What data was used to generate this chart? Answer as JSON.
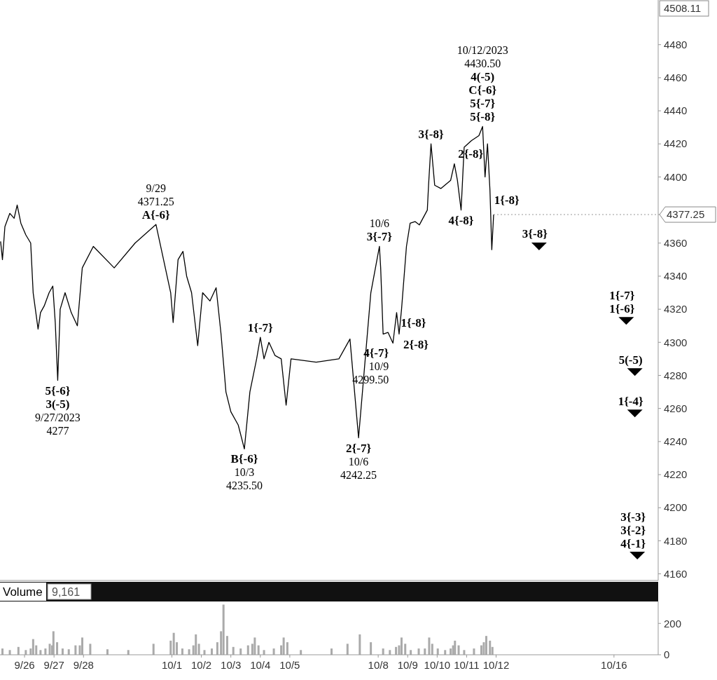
{
  "chart_data": [
    {
      "type": "line",
      "xlim": [
        "2023-09-25T04:00",
        "2023-10-17T12:00"
      ],
      "ylim": [
        4156,
        4507
      ],
      "yticks": [
        4160,
        4180,
        4200,
        4220,
        4240,
        4260,
        4280,
        4300,
        4320,
        4340,
        4360,
        4400,
        4420,
        4440,
        4460,
        4480
      ],
      "tick_labels": "y",
      "series": [
        {
          "color": "#000000",
          "x": [
            "2023-09-25T04:30",
            "2023-09-25T06:00",
            "2023-09-25T08:00",
            "2023-09-25T12:00",
            "2023-09-25T15:30",
            "2023-09-25T18:00",
            "2023-09-25T21:00",
            "2023-09-26T01:00",
            "2023-09-26T05:00",
            "2023-09-26T07:00",
            "2023-09-26T11:00",
            "2023-09-26T13:00",
            "2023-09-26T16:00",
            "2023-09-26T20:00",
            "2023-09-26T23:00",
            "2023-09-27T01:00",
            "2023-09-27T03:00",
            "2023-09-27T05:00",
            "2023-09-27T09:00",
            "2023-09-27T14:00",
            "2023-09-27T19:00",
            "2023-09-27T23:00",
            "2023-09-28T08:00",
            "2023-09-29T01:00",
            "2023-09-29T18:00",
            "2023-09-30T11:00",
            "2023-09-30T23:00",
            "2023-10-01T01:00",
            "2023-10-01T05:00",
            "2023-10-01T09:00",
            "2023-10-01T12:00",
            "2023-10-01T16:00",
            "2023-10-01T21:00",
            "2023-10-02T01:00",
            "2023-10-02T07:00",
            "2023-10-02T12:00",
            "2023-10-02T16:00",
            "2023-10-02T20:00",
            "2023-10-03T00:00",
            "2023-10-03T06:00",
            "2023-10-03T11:00",
            "2023-10-03T15:30",
            "2023-10-03T21:00",
            "2023-10-04T00:00",
            "2023-10-04T03:00",
            "2023-10-04T07:00",
            "2023-10-04T12:00",
            "2023-10-04T17:00",
            "2023-10-04T21:00",
            "2023-10-05T01:00",
            "2023-10-05T21:30",
            "2023-10-06T16:00",
            "2023-10-07T01:00",
            "2023-10-07T08:00",
            "2023-10-07T18:00",
            "2023-10-08T01:00",
            "2023-10-08T02:00",
            "2023-10-08T04:00",
            "2023-10-08T08:00",
            "2023-10-08T12:00",
            "2023-10-08T15:00",
            "2023-10-08T17:00",
            "2023-10-08T19:00",
            "2023-10-08T23:00",
            "2023-10-09T02:00",
            "2023-10-09T06:00",
            "2023-10-09T09:30",
            "2023-10-09T16:00",
            "2023-10-09T17:00",
            "2023-10-09T19:00",
            "2023-10-09T22:00",
            "2023-10-10T03:00",
            "2023-10-10T11:00",
            "2023-10-10T14:00",
            "2023-10-10T16:30",
            "2023-10-10T19:30",
            "2023-10-10T22:00",
            "2023-10-11T04:00",
            "2023-10-11T10:00",
            "2023-10-11T13:00",
            "2023-10-11T15:00",
            "2023-10-11T17:00",
            "2023-10-11T19:00",
            "2023-10-11T20:30",
            "2023-10-11T22:00"
          ],
          "values": [
            4361,
            4350,
            4370,
            4378,
            4375,
            4383,
            4372,
            4365,
            4360,
            4330,
            4308,
            4318,
            4322,
            4330,
            4334,
            4312,
            4277,
            4320,
            4330,
            4318,
            4310,
            4345,
            4358,
            4345,
            4360,
            4371.25,
            4330,
            4312,
            4350,
            4355,
            4340,
            4330,
            4298,
            4330,
            4325,
            4333,
            4305,
            4270,
            4258,
            4250,
            4235.5,
            4270,
            4290,
            4303,
            4290,
            4300,
            4292,
            4290,
            4262,
            4290,
            4288,
            4290,
            4302,
            4242.25,
            4330,
            4358,
            4345,
            4305,
            4306,
            4299.5,
            4318,
            4305,
            4320,
            4358,
            4372,
            4373,
            4371,
            4380,
            4395,
            4420,
            4395,
            4393,
            4398,
            4408,
            4398,
            4380,
            4418,
            4422,
            4425,
            4430.5,
            4400,
            4420,
            4392,
            4356,
            4377.25
          ]
        },
        {
          "type": "scatter",
          "marker": "triangle",
          "color": "#000000",
          "x": [
            "2023-10-13T11:00",
            "2023-10-16T10:00",
            "2023-10-16T17:00",
            "2023-10-16T17:00",
            "2023-10-16T19:00"
          ],
          "values": [
            4358,
            4313,
            4282,
            4257,
            4171
          ]
        }
      ],
      "annotations": [
        "4508.11",
        {
          "text": "4377.25",
          "x": "2023-10-11T22:00",
          "y": 4377.25
        },
        {
          "text": "5{-6}\n3(-5)\n9/27/2023\n4277",
          "x": "2023-09-27T03:00",
          "y": 4277
        },
        {
          "text": "9/29\n4371.25\nA{-6}",
          "x": "2023-09-30T11:00",
          "y": 4371.25
        },
        {
          "text": "B{-6}\n10/3\n4235.50",
          "x": "2023-10-03T11:00",
          "y": 4235.5
        },
        {
          "text": "1{-7}",
          "x": "2023-10-04T00:00",
          "y": 4303
        },
        {
          "text": "2{-7}\n10/6\n4242.25",
          "x": "2023-10-07T08:00",
          "y": 4242.25
        },
        {
          "text": "10/6\n3{-7}",
          "x": "2023-10-08T01:00",
          "y": 4358
        },
        {
          "text": "4{-7}\n10/9\n4299.50",
          "x": "2023-10-08T12:00",
          "y": 4299.5
        },
        {
          "text": "1{-8}",
          "x": "2023-10-08T15:00",
          "y": 4318
        },
        {
          "text": "2{-8}",
          "x": "2023-10-08T17:00",
          "y": 4305
        },
        {
          "text": "3{-8}",
          "x": "2023-10-09T19:00",
          "y": 4420
        },
        {
          "text": "4{-8}",
          "x": "2023-10-10T19:30",
          "y": 4380
        },
        {
          "text": "10/12/2023\n4430.50\n4(-5)\nC{-6}\n5{-7}\n5{-8}",
          "x": "2023-10-11T13:00",
          "y": 4430.5
        },
        {
          "text": "2{-8}",
          "x": "2023-10-11T17:00",
          "y": 4420
        },
        {
          "text": "1{-8}",
          "x": "2023-10-11T19:00",
          "y": 4392
        },
        {
          "text": "3{-8}",
          "x": "2023-10-13T11:00",
          "y": 4358
        },
        {
          "text": "1{-7}\n1{-6}",
          "x": "2023-10-16T10:00",
          "y": 4313
        },
        {
          "text": "5(-5)",
          "x": "2023-10-16T17:00",
          "y": 4282
        },
        {
          "text": "1{-4}",
          "x": "2023-10-16T17:00",
          "y": 4257
        },
        {
          "text": "3{-3}\n3{-2}\n4{-1}",
          "x": "2023-10-16T19:00",
          "y": 4171
        }
      ]
    },
    {
      "type": "bar",
      "title": "Volume",
      "color": "#aaaaaa",
      "xlim": [
        "2023-09-25T04:00",
        "2023-10-17T12:00"
      ],
      "ylim": [
        0,
        340
      ],
      "yticks": [
        0,
        200
      ],
      "xticks": [
        {
          "value": "2023-09-26",
          "label": "9/26"
        },
        {
          "value": "2023-09-27",
          "label": "9/27"
        },
        {
          "value": "2023-09-28",
          "label": "9/28"
        },
        {
          "value": "2023-10-01",
          "label": "10/1"
        },
        {
          "value": "2023-10-02",
          "label": "10/2"
        },
        {
          "value": "2023-10-03",
          "label": "10/3"
        },
        {
          "value": "2023-10-04",
          "label": "10/4"
        },
        {
          "value": "2023-10-05",
          "label": "10/5"
        },
        {
          "value": "2023-10-08",
          "label": "10/8"
        },
        {
          "value": "2023-10-09",
          "label": "10/9"
        },
        {
          "value": "2023-10-10",
          "label": "10/10"
        },
        {
          "value": "2023-10-11",
          "label": "10/11"
        },
        {
          "value": "2023-10-12",
          "label": "10/12"
        },
        {
          "value": "2023-10-16",
          "label": "10/16"
        }
      ],
      "x": [
        "2023-09-25T06:00",
        "2023-09-25T12:00",
        "2023-09-25T19:00",
        "2023-09-26T01:00",
        "2023-09-26T05:00",
        "2023-09-26T07:00",
        "2023-09-26T09:30",
        "2023-09-26T13:00",
        "2023-09-26T17:00",
        "2023-09-26T20:30",
        "2023-09-26T22:30",
        "2023-09-26T23:30",
        "2023-09-27T02:30",
        "2023-09-27T07:00",
        "2023-09-27T12:00",
        "2023-09-27T17:30",
        "2023-09-27T21:00",
        "2023-09-27T23:00",
        "2023-09-28T05:30",
        "2023-09-28T19:30",
        "2023-09-29T12:30",
        "2023-09-30T09:00",
        "2023-09-30T23:00",
        "2023-10-01T01:30",
        "2023-10-01T04:00",
        "2023-10-01T08:30",
        "2023-10-01T14:00",
        "2023-10-01T17:30",
        "2023-10-01T19:30",
        "2023-10-01T22:00",
        "2023-10-02T02:30",
        "2023-10-02T08:30",
        "2023-10-02T13:00",
        "2023-10-02T16:00",
        "2023-10-02T18:00",
        "2023-10-02T21:00",
        "2023-10-03T02:00",
        "2023-10-03T08:00",
        "2023-10-03T14:00",
        "2023-10-03T17:30",
        "2023-10-03T19:30",
        "2023-10-03T22:30",
        "2023-10-04T03:00",
        "2023-10-04T11:00",
        "2023-10-04T17:00",
        "2023-10-04T19:00",
        "2023-10-04T22:00",
        "2023-10-05T09:00",
        "2023-10-06T10:00",
        "2023-10-06T23:00",
        "2023-10-07T09:00",
        "2023-10-07T18:00",
        "2023-10-08T04:00",
        "2023-10-08T09:30",
        "2023-10-08T14:30",
        "2023-10-08T17:00",
        "2023-10-08T19:00",
        "2023-10-08T22:00",
        "2023-10-09T02:30",
        "2023-10-09T09:00",
        "2023-10-09T14:00",
        "2023-10-09T17:30",
        "2023-10-09T20:00",
        "2023-10-10T00:30",
        "2023-10-10T06:30",
        "2023-10-10T11:00",
        "2023-10-10T13:00",
        "2023-10-10T14:30",
        "2023-10-10T17:30",
        "2023-10-10T22:00",
        "2023-10-11T06:00",
        "2023-10-11T12:00",
        "2023-10-11T14:00",
        "2023-10-11T16:00",
        "2023-10-11T19:00",
        "2023-10-11T21:00"
      ],
      "values": [
        40,
        30,
        50,
        30,
        40,
        100,
        60,
        30,
        40,
        70,
        60,
        150,
        80,
        40,
        35,
        60,
        60,
        110,
        70,
        35,
        30,
        70,
        90,
        140,
        80,
        40,
        35,
        60,
        130,
        70,
        30,
        40,
        80,
        150,
        320,
        120,
        50,
        40,
        60,
        70,
        110,
        60,
        30,
        40,
        60,
        110,
        80,
        30,
        40,
        70,
        130,
        80,
        40,
        30,
        50,
        60,
        110,
        70,
        30,
        40,
        40,
        110,
        70,
        40,
        30,
        40,
        60,
        90,
        60,
        30,
        40,
        60,
        80,
        120,
        90,
        50
      ],
      "annotations": [
        "9,161"
      ]
    }
  ]
}
